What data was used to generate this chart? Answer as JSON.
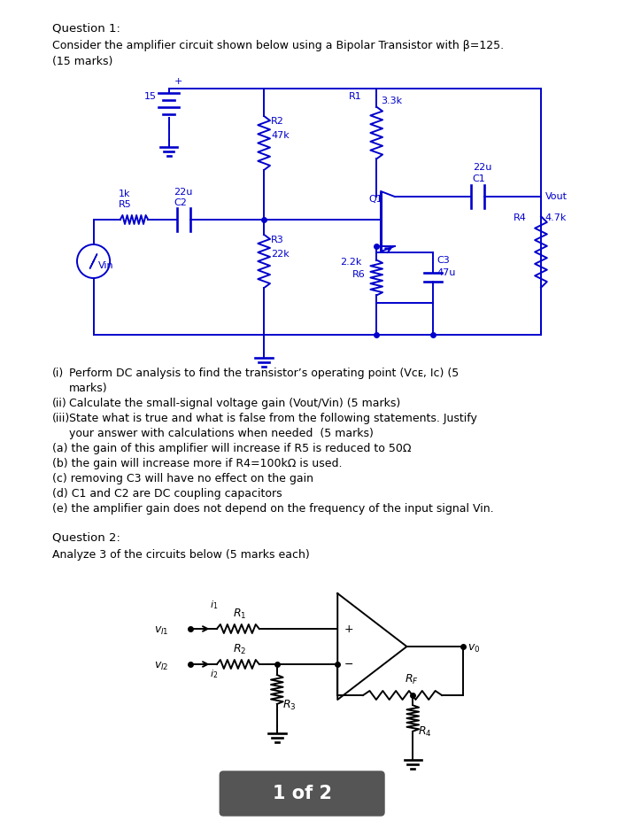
{
  "bg_color": "#ffffff",
  "circuit_color": "#0000cc",
  "text_color": "#000000",
  "circuit2_color": "#000000",
  "title1": "Question 1:",
  "desc1": "Consider the amplifier circuit shown below using a Bipolar Transistor with β=125.",
  "desc1b": "(15 marks)",
  "title2": "Question 2:",
  "desc2": "Analyze 3 of the circuits below (5 marks each)",
  "page_label": "1 of 2"
}
